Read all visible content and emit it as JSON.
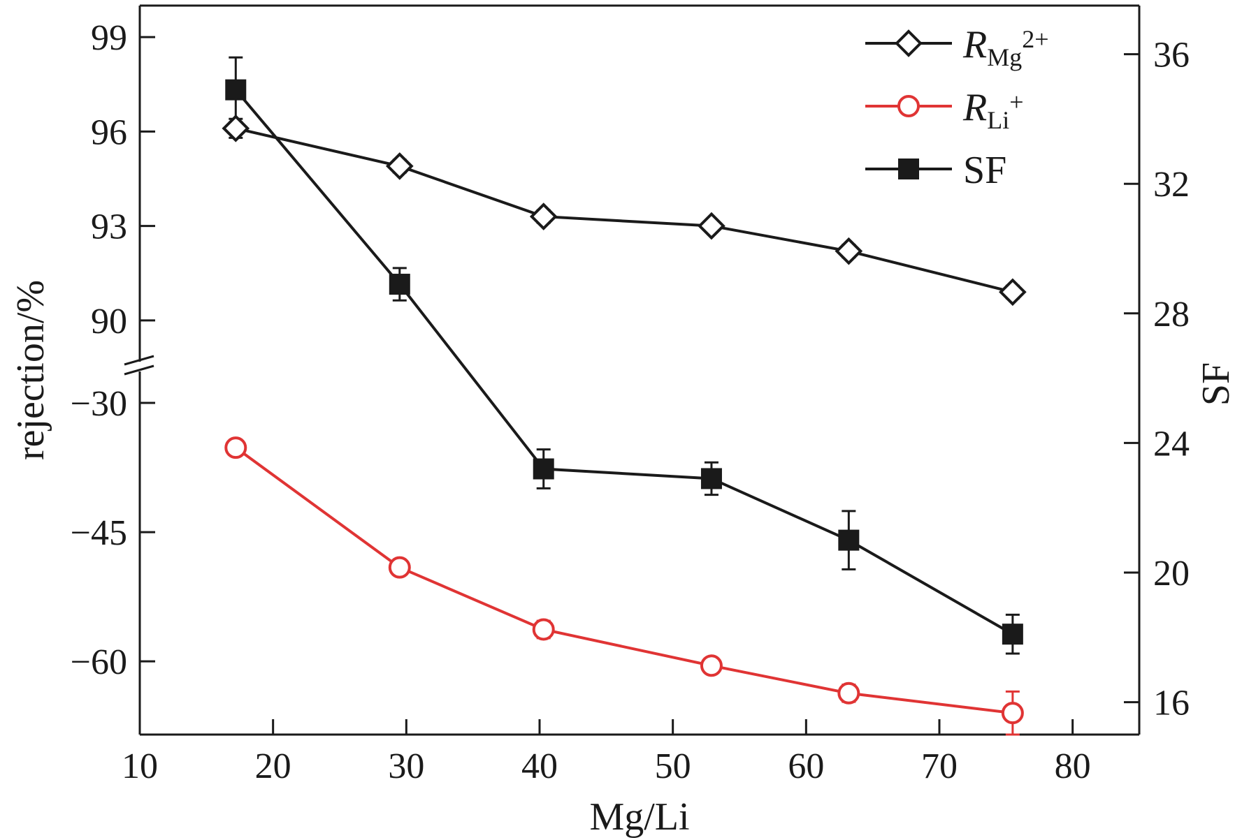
{
  "chart_data": {
    "type": "line",
    "xlabel": "Mg/Li",
    "ylabel_left": "rejection/%",
    "ylabel_right": "SF",
    "xlim": [
      10,
      85
    ],
    "x_ticks": [
      "10",
      "20",
      "30",
      "40",
      "50",
      "60",
      "70",
      "80"
    ],
    "y_left_upper_range": [
      88.2,
      100
    ],
    "y_left_upper_ticks": [
      "99",
      "96",
      "93",
      "90"
    ],
    "y_left_lower_range": [
      -68.5,
      -27
    ],
    "y_left_lower_ticks": [
      "−30",
      "−45",
      "−60"
    ],
    "y_right_range": [
      15,
      37.5
    ],
    "y_right_ticks": [
      "36",
      "32",
      "28",
      "24",
      "20",
      "16"
    ],
    "grid": false,
    "legend_position": "top-right",
    "series": [
      {
        "name": "R_Mg2+",
        "legend_main": "R",
        "legend_sub": "Mg",
        "legend_sup": "2+",
        "axis": "left-upper",
        "color": "#1a1a1a",
        "marker": "diamond-open",
        "x": [
          17.2,
          29.5,
          40.3,
          52.9,
          63.2,
          75.5
        ],
        "y": [
          96.1,
          94.9,
          93.3,
          93.0,
          92.2,
          90.9
        ],
        "err": [
          0.3,
          0.2,
          0.2,
          0.15,
          0.2,
          0.2
        ]
      },
      {
        "name": "R_Li+",
        "legend_main": "R",
        "legend_sub": "Li",
        "legend_sup": "+",
        "axis": "left-lower",
        "color": "#e03434",
        "marker": "circle-open",
        "x": [
          17.2,
          29.5,
          40.3,
          52.9,
          63.2,
          75.5
        ],
        "y": [
          -35.2,
          -49.1,
          -56.3,
          -60.5,
          -63.7,
          -66.0
        ],
        "err": [
          0.4,
          0.6,
          1.0,
          0.4,
          1.0,
          2.5
        ]
      },
      {
        "name": "SF",
        "legend_main": "SF",
        "axis": "right",
        "color": "#1a1a1a",
        "marker": "square-filled",
        "x": [
          17.2,
          29.5,
          40.3,
          52.9,
          63.2,
          75.5
        ],
        "y": [
          34.9,
          28.9,
          23.2,
          22.9,
          21.0,
          18.1
        ],
        "err": [
          1.0,
          0.5,
          0.6,
          0.5,
          0.9,
          0.6
        ]
      }
    ]
  }
}
